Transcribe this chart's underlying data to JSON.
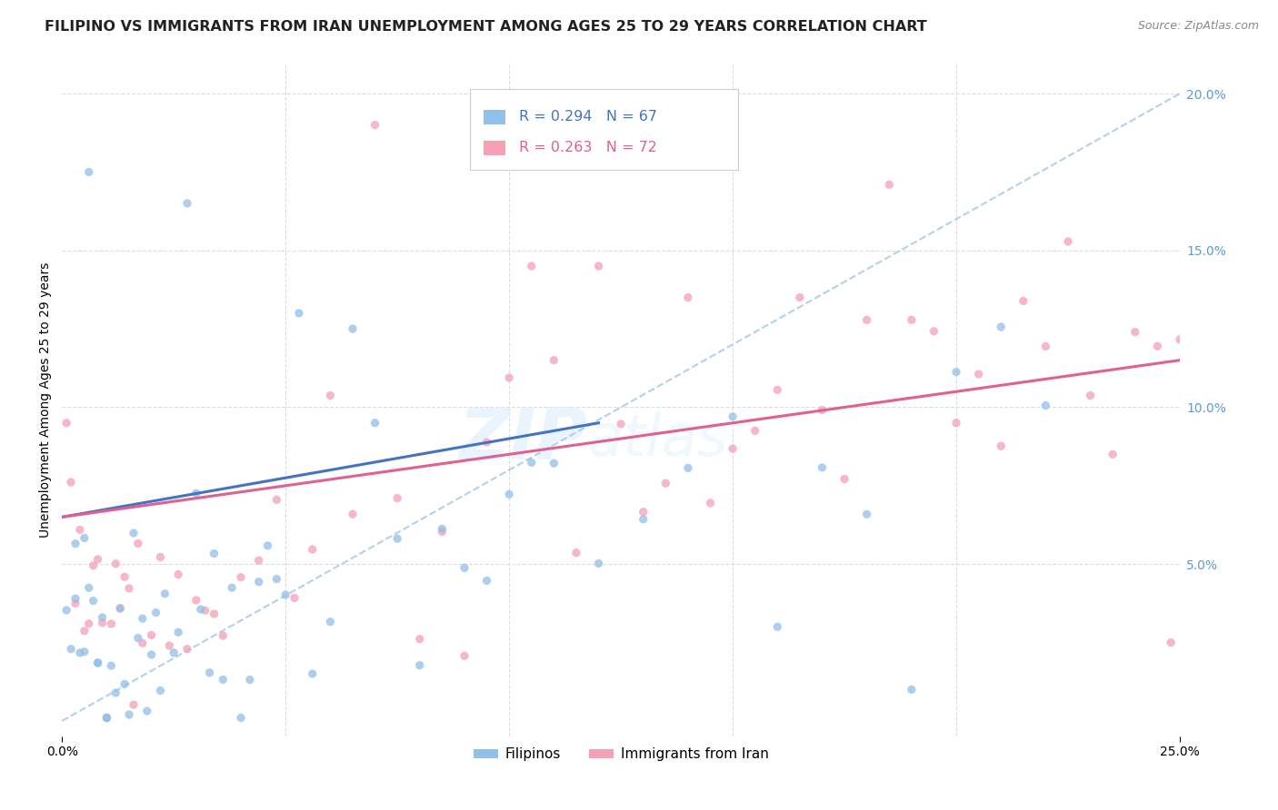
{
  "title": "FILIPINO VS IMMIGRANTS FROM IRAN UNEMPLOYMENT AMONG AGES 25 TO 29 YEARS CORRELATION CHART",
  "source": "Source: ZipAtlas.com",
  "ylabel": "Unemployment Among Ages 25 to 29 years",
  "xmin": 0.0,
  "xmax": 0.25,
  "ymin": -0.005,
  "ymax": 0.21,
  "yticks": [
    0.05,
    0.1,
    0.15,
    0.2
  ],
  "ytick_labels": [
    "5.0%",
    "10.0%",
    "15.0%",
    "20.0%"
  ],
  "filipino_color": "#92C0E8",
  "iran_color": "#F4A0B5",
  "filipino_line_color": "#4472C4",
  "iran_line_color": "#E06090",
  "dash_line_color": "#AACCE8",
  "R_filipino": 0.294,
  "N_filipino": 67,
  "R_iran": 0.263,
  "N_iran": 72,
  "watermark_text": "ZIP",
  "watermark_text2": "atlas",
  "legend_filipino": "Filipinos",
  "legend_iran": "Immigrants from Iran",
  "title_fontsize": 11.5,
  "source_fontsize": 9,
  "label_fontsize": 10,
  "scatter_alpha": 0.75,
  "scatter_size": 45,
  "background_color": "#FFFFFF",
  "grid_color": "#DDDDDD"
}
